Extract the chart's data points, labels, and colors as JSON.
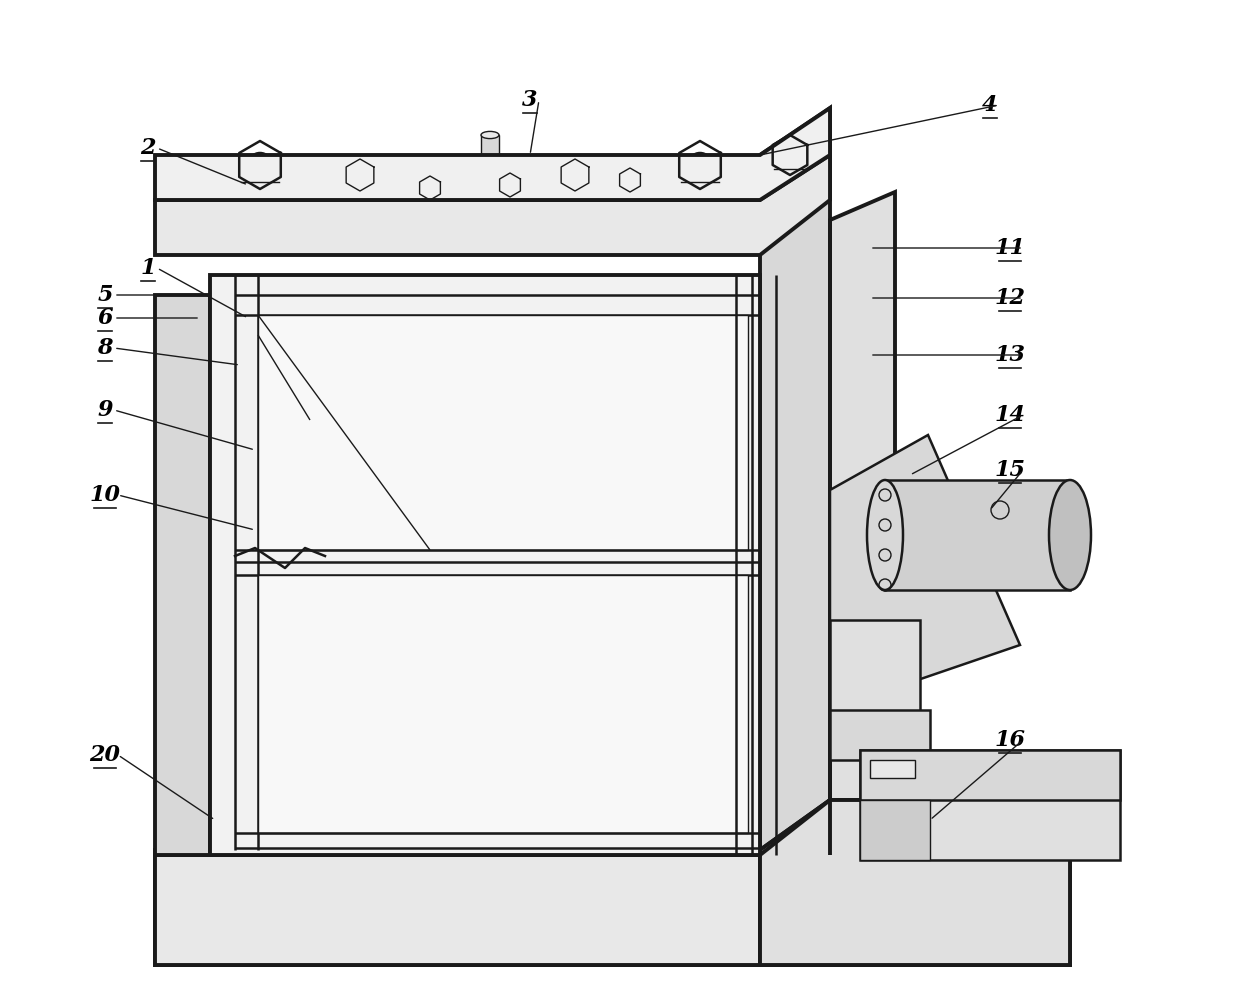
{
  "bg_color": "#ffffff",
  "line_color": "#1a1a1a",
  "lw1": 1.0,
  "lw2": 1.8,
  "lw3": 2.8,
  "label_fontsize": 16,
  "annotations": [
    [
      "1",
      148,
      268,
      248,
      318
    ],
    [
      "2",
      148,
      148,
      248,
      185
    ],
    [
      "3",
      530,
      100,
      530,
      155
    ],
    [
      "4",
      990,
      105,
      760,
      155
    ],
    [
      "5",
      105,
      295,
      200,
      295
    ],
    [
      "6",
      105,
      318,
      200,
      318
    ],
    [
      "8",
      105,
      348,
      240,
      365
    ],
    [
      "9",
      105,
      410,
      255,
      450
    ],
    [
      "10",
      105,
      495,
      255,
      530
    ],
    [
      "11",
      1010,
      248,
      870,
      248
    ],
    [
      "12",
      1010,
      298,
      870,
      298
    ],
    [
      "13",
      1010,
      355,
      870,
      355
    ],
    [
      "14",
      1010,
      415,
      910,
      475
    ],
    [
      "15",
      1010,
      470,
      990,
      510
    ],
    [
      "16",
      1010,
      740,
      930,
      820
    ],
    [
      "20",
      105,
      755,
      215,
      820
    ]
  ]
}
